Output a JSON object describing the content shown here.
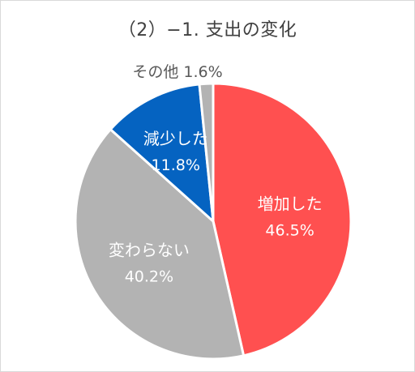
{
  "chart_data": {
    "type": "pie",
    "title": "（2）−1. 支出の変化",
    "unit": "%",
    "start_angle_deg": 0,
    "direction": "clockwise",
    "slices": [
      {
        "label": "増加した",
        "value": 46.5,
        "value_text": "46.5%",
        "color": "#ff5050",
        "text_color": "#ffffff",
        "label_placement": "inside"
      },
      {
        "label": "変わらない",
        "value": 40.2,
        "value_text": "40.2%",
        "color": "#b3b3b3",
        "text_color": "#ffffff",
        "label_placement": "inside"
      },
      {
        "label": "減少した",
        "value": 11.8,
        "value_text": "11.8%",
        "color": "#0563c1",
        "text_color": "#ffffff",
        "label_placement": "inside"
      },
      {
        "label": "その他",
        "value": 1.6,
        "value_text": "1.6%",
        "color": "#b3b3b3",
        "text_color": "#595959",
        "label_placement": "outside"
      }
    ]
  }
}
